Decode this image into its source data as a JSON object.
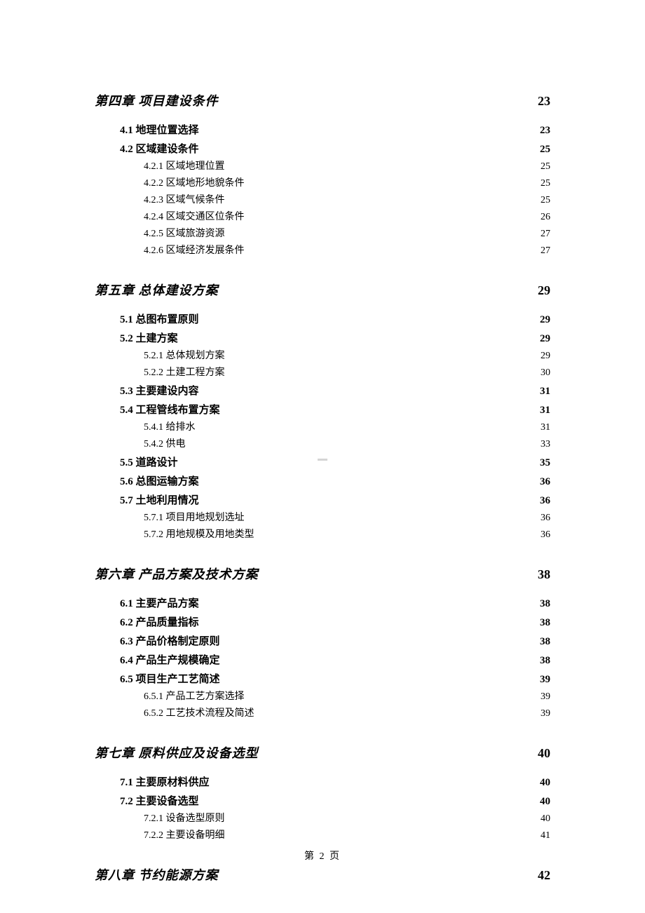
{
  "page_label": "第 2 页",
  "text_color": "#000000",
  "background_color": "#ffffff",
  "font_family_body": "SimSun",
  "font_sizes": {
    "level1": 18,
    "level2": 15,
    "level3": 14,
    "pagenum": 14
  },
  "entries": [
    {
      "level": 1,
      "title": "第四章 项目建设条件",
      "page": "23"
    },
    {
      "level": 2,
      "title": "4.1 地理位置选择",
      "page": "23"
    },
    {
      "level": 2,
      "title": "4.2 区域建设条件",
      "page": "25"
    },
    {
      "level": 3,
      "title": "4.2.1 区域地理位置",
      "page": "25"
    },
    {
      "level": 3,
      "title": "4.2.2 区域地形地貌条件",
      "page": "25"
    },
    {
      "level": 3,
      "title": "4.2.3 区域气候条件",
      "page": "25"
    },
    {
      "level": 3,
      "title": "4.2.4 区域交通区位条件",
      "page": "26"
    },
    {
      "level": 3,
      "title": "4.2.5 区域旅游资源",
      "page": "27"
    },
    {
      "level": 3,
      "title": "4.2.6 区域经济发展条件",
      "page": "27"
    },
    {
      "level": 1,
      "title": "第五章 总体建设方案",
      "page": "29"
    },
    {
      "level": 2,
      "title": "5.1 总图布置原则",
      "page": "29"
    },
    {
      "level": 2,
      "title": "5.2 土建方案",
      "page": "29"
    },
    {
      "level": 3,
      "title": "5.2.1 总体规划方案",
      "page": "29"
    },
    {
      "level": 3,
      "title": "5.2.2 土建工程方案",
      "page": "30"
    },
    {
      "level": 2,
      "title": "5.3 主要建设内容",
      "page": "31"
    },
    {
      "level": 2,
      "title": "5.4 工程管线布置方案",
      "page": "31"
    },
    {
      "level": 3,
      "title": "5.4.1 给排水",
      "page": "31"
    },
    {
      "level": 3,
      "title": "5.4.2 供电",
      "page": "33"
    },
    {
      "level": 2,
      "title": "5.5 道路设计",
      "page": "35"
    },
    {
      "level": 2,
      "title": "5.6 总图运输方案",
      "page": "36"
    },
    {
      "level": 2,
      "title": "5.7 土地利用情况",
      "page": "36"
    },
    {
      "level": 3,
      "title": "5.7.1 项目用地规划选址",
      "page": "36"
    },
    {
      "level": 3,
      "title": "5.7.2 用地规模及用地类型",
      "page": "36"
    },
    {
      "level": 1,
      "title": "第六章 产品方案及技术方案",
      "page": "38"
    },
    {
      "level": 2,
      "title": "6.1 主要产品方案",
      "page": "38"
    },
    {
      "level": 2,
      "title": "6.2 产品质量指标",
      "page": "38"
    },
    {
      "level": 2,
      "title": "6.3 产品价格制定原则",
      "page": "38"
    },
    {
      "level": 2,
      "title": "6.4 产品生产规模确定",
      "page": "38"
    },
    {
      "level": 2,
      "title": "6.5 项目生产工艺简述",
      "page": "39"
    },
    {
      "level": 3,
      "title": "6.5.1 产品工艺方案选择",
      "page": "39"
    },
    {
      "level": 3,
      "title": "6.5.2 工艺技术流程及简述",
      "page": "39"
    },
    {
      "level": 1,
      "title": "第七章 原料供应及设备选型",
      "page": "40"
    },
    {
      "level": 2,
      "title": "7.1 主要原材料供应",
      "page": "40"
    },
    {
      "level": 2,
      "title": "7.2 主要设备选型",
      "page": "40"
    },
    {
      "level": 3,
      "title": "7.2.1 设备选型原则",
      "page": "40"
    },
    {
      "level": 3,
      "title": "7.2.2 主要设备明细",
      "page": "41"
    },
    {
      "level": 1,
      "title": "第八章 节约能源方案",
      "page": "42"
    }
  ]
}
